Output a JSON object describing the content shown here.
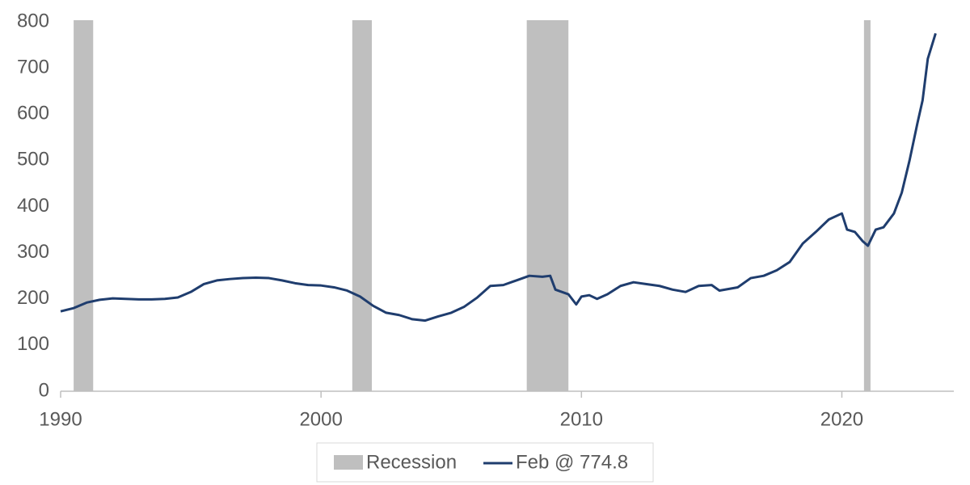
{
  "chart_data": {
    "type": "line",
    "x": [
      1990.0,
      1990.5,
      1991.0,
      1991.5,
      1992.0,
      1992.5,
      1993.0,
      1993.5,
      1994.0,
      1994.5,
      1995.0,
      1995.5,
      1996.0,
      1996.5,
      1997.0,
      1997.5,
      1998.0,
      1998.5,
      1999.0,
      1999.5,
      2000.0,
      2000.5,
      2001.0,
      2001.5,
      2002.0,
      2002.5,
      2003.0,
      2003.5,
      2004.0,
      2004.5,
      2005.0,
      2005.5,
      2006.0,
      2006.5,
      2007.0,
      2007.5,
      2008.0,
      2008.5,
      2008.8,
      2009.0,
      2009.5,
      2009.8,
      2010.0,
      2010.3,
      2010.6,
      2011.0,
      2011.5,
      2012.0,
      2012.5,
      2013.0,
      2013.5,
      2014.0,
      2014.5,
      2015.0,
      2015.3,
      2016.0,
      2016.5,
      2017.0,
      2017.5,
      2018.0,
      2018.5,
      2019.0,
      2019.5,
      2020.0,
      2020.2,
      2020.5,
      2020.8,
      2021.0,
      2021.3,
      2021.6,
      2022.0,
      2022.3,
      2022.6,
      2022.9,
      2023.1,
      2023.3,
      2023.6
    ],
    "series": [
      {
        "name": "Feb @ 774.8",
        "color": "#1f3d6e",
        "values": [
          173,
          180,
          192,
          198,
          201,
          200,
          199,
          199,
          200,
          203,
          215,
          232,
          240,
          243,
          245,
          246,
          245,
          240,
          234,
          230,
          229,
          225,
          218,
          205,
          185,
          170,
          165,
          156,
          153,
          162,
          170,
          183,
          203,
          228,
          230,
          240,
          250,
          248,
          250,
          220,
          210,
          188,
          205,
          208,
          200,
          210,
          228,
          236,
          232,
          228,
          220,
          215,
          228,
          230,
          218,
          225,
          245,
          250,
          262,
          280,
          320,
          345,
          372,
          385,
          350,
          345,
          325,
          315,
          350,
          355,
          385,
          430,
          500,
          580,
          630,
          720,
          775
        ]
      }
    ],
    "recession_name": "Recession",
    "recession_color": "#bfbfbf",
    "recessions": [
      [
        1990.5,
        1991.25
      ],
      [
        2001.2,
        2001.95
      ],
      [
        2007.9,
        2009.5
      ],
      [
        2020.85,
        2021.1
      ]
    ],
    "xlim": [
      1990,
      2024.3
    ],
    "xticks": [
      1990,
      2000,
      2010,
      2020
    ],
    "ylim": [
      0,
      800
    ],
    "yticks": [
      0,
      100,
      200,
      300,
      400,
      500,
      600,
      700,
      800
    ]
  }
}
